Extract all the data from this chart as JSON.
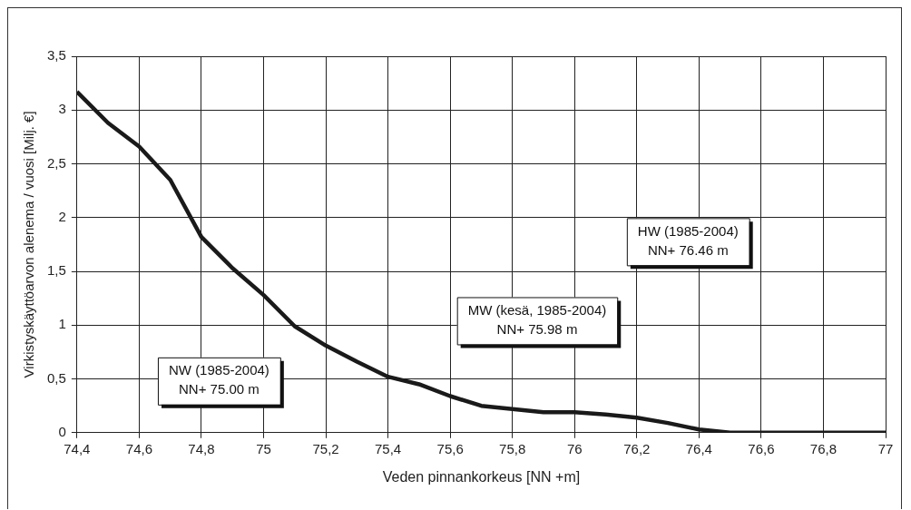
{
  "chart_data": {
    "type": "line",
    "xlabel": "Veden pinnankorkeus [NN +m]",
    "ylabel": "Virkistyskäyttöarvon alenema / vuosi [Milj. €]",
    "x": [
      74.4,
      74.5,
      74.6,
      74.7,
      74.8,
      74.9,
      75.0,
      75.1,
      75.2,
      75.3,
      75.4,
      75.5,
      75.6,
      75.7,
      75.8,
      75.9,
      76.0,
      76.1,
      76.2,
      76.3,
      76.4,
      76.5,
      76.6,
      76.7,
      76.8,
      76.9,
      77.0
    ],
    "series": [
      {
        "color": "#1a1a1a",
        "values": [
          3.17,
          2.88,
          2.66,
          2.35,
          1.82,
          1.53,
          1.28,
          0.99,
          0.81,
          0.66,
          0.52,
          0.45,
          0.34,
          0.25,
          0.22,
          0.19,
          0.19,
          0.17,
          0.14,
          0.09,
          0.03,
          0,
          0,
          0,
          0,
          0,
          0
        ]
      }
    ],
    "xlim": [
      74.4,
      77
    ],
    "xticks": [
      {
        "value": 74.4,
        "label": "74,4"
      },
      {
        "value": 74.6,
        "label": "74,6"
      },
      {
        "value": 74.8,
        "label": "74,8"
      },
      75,
      {
        "value": 75.2,
        "label": "75,2"
      },
      {
        "value": 75.4,
        "label": "75,4"
      },
      {
        "value": 75.6,
        "label": "75,6"
      },
      {
        "value": 75.8,
        "label": "75,8"
      },
      76,
      {
        "value": 76.2,
        "label": "76,2"
      },
      {
        "value": 76.4,
        "label": "76,4"
      },
      {
        "value": 76.6,
        "label": "76,6"
      },
      {
        "value": 76.8,
        "label": "76,8"
      },
      77
    ],
    "ylim": [
      0,
      3.5
    ],
    "yticks": [
      0,
      {
        "value": 0.5,
        "label": "0,5"
      },
      1,
      {
        "value": 1.5,
        "label": "1,5"
      },
      2,
      {
        "value": 2.5,
        "label": "2,5"
      },
      3,
      {
        "value": 3.5,
        "label": "3,5"
      }
    ],
    "grid": true,
    "legend": false,
    "marker": "none",
    "line_style": "solid",
    "annotations": [
      "NW (1985-2004)\nNN+ 75.00 m",
      "MW (kesä, 1985-2004)\nNN+ 75.98 m",
      "HW (1985-2004)\nNN+ 76.46 m"
    ]
  }
}
